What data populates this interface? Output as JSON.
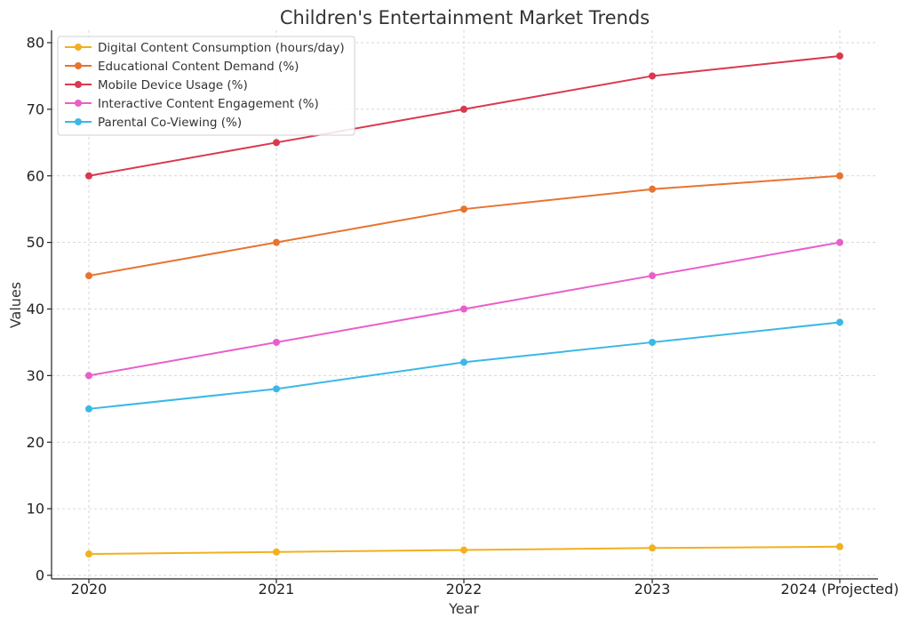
{
  "chart_data": {
    "type": "line",
    "title": "Children's Entertainment Market Trends",
    "xlabel": "Year",
    "ylabel": "Values",
    "categories": [
      "2020",
      "2021",
      "2022",
      "2023",
      "2024 (Projected)"
    ],
    "ylim": [
      0,
      80
    ],
    "yticks": [
      0,
      10,
      20,
      30,
      40,
      50,
      60,
      70,
      80
    ],
    "grid": true,
    "legend_position": "top-left",
    "series": [
      {
        "name": "Digital Content Consumption (hours/day)",
        "color": "#f2b01e",
        "values": [
          3.2,
          3.5,
          3.8,
          4.1,
          4.3
        ]
      },
      {
        "name": "Educational Content Demand (%)",
        "color": "#e8732f",
        "values": [
          45,
          50,
          55,
          58,
          60
        ]
      },
      {
        "name": "Mobile Device Usage (%)",
        "color": "#d9394f",
        "values": [
          60,
          65,
          70,
          75,
          78
        ]
      },
      {
        "name": "Interactive Content Engagement (%)",
        "color": "#e85fcb",
        "values": [
          30,
          35,
          40,
          45,
          50
        ]
      },
      {
        "name": "Parental Co-Viewing (%)",
        "color": "#3bb8e6",
        "values": [
          25,
          28,
          32,
          35,
          38
        ]
      }
    ]
  }
}
